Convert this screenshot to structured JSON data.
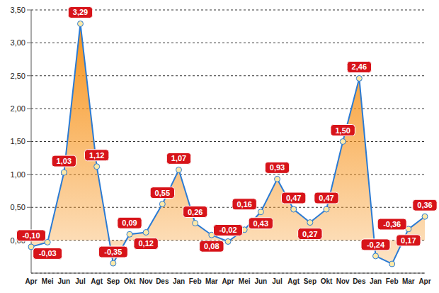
{
  "chart_data": {
    "type": "area",
    "categories": [
      "Apr",
      "Mei",
      "Jun",
      "Jul",
      "Agt",
      "Sep",
      "Okt",
      "Nov",
      "Des",
      "Jan",
      "Feb",
      "Mar",
      "Apr",
      "Mei",
      "Jun",
      "Jul",
      "Agt",
      "Sep",
      "Okt",
      "Nov",
      "Des",
      "Jan",
      "Feb",
      "Mar",
      "Apr"
    ],
    "values": [
      -0.1,
      -0.03,
      1.03,
      3.29,
      1.12,
      -0.35,
      0.09,
      0.12,
      0.55,
      1.07,
      0.26,
      0.08,
      -0.02,
      0.16,
      0.43,
      0.93,
      0.47,
      0.27,
      0.47,
      1.5,
      2.46,
      -0.24,
      -0.36,
      0.17,
      0.36
    ],
    "value_labels": [
      "-0,10",
      "-0,03",
      "1,03",
      "3,29",
      "1,12",
      "-0,35",
      "0,09",
      "0,12",
      "0,55",
      "1,07",
      "0,26",
      "0,08",
      "-0,02",
      "0,16",
      "0,43",
      "0,93",
      "0,47",
      "0,27",
      "0,47",
      "1,50",
      "2,46",
      "-0,24",
      "-0,36",
      "0,17",
      "0,36"
    ],
    "color": "#f7941d",
    "ylim": [
      -0.5,
      3.5
    ],
    "yticks": [
      {
        "value": 0,
        "label": "0,00"
      },
      {
        "value": 0.5,
        "label": "0,50"
      },
      {
        "value": 1,
        "label": "1,00"
      },
      {
        "value": 1.5,
        "label": "1,50"
      },
      {
        "value": 2,
        "label": "2,00"
      },
      {
        "value": 2.5,
        "label": "2,50"
      },
      {
        "value": 3,
        "label": "3,00"
      },
      {
        "value": 3.5,
        "label": "3,50"
      }
    ],
    "grid": true,
    "data_labels": true,
    "marker": "circle"
  }
}
